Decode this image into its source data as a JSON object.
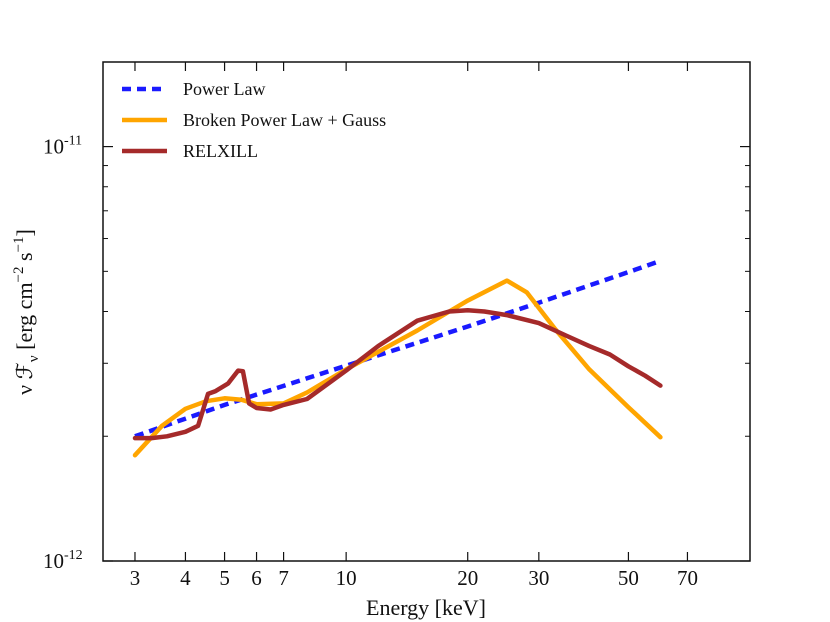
{
  "chart_data": {
    "type": "line",
    "title": "",
    "xlabel": "Energy [keV]",
    "ylabel": "ν ℱν [erg cm⁻² s⁻¹]",
    "xscale": "log",
    "yscale": "log",
    "xlim": [
      2.5,
      100
    ],
    "ylim": [
      1e-12,
      1.6e-11
    ],
    "xticks": [
      {
        "value": 3,
        "label": "3"
      },
      {
        "value": 4,
        "label": "4"
      },
      {
        "value": 5,
        "label": "5"
      },
      {
        "value": 6,
        "label": "6"
      },
      {
        "value": 7,
        "label": "7"
      },
      {
        "value": 10,
        "label": "10"
      },
      {
        "value": 20,
        "label": "20"
      },
      {
        "value": 30,
        "label": "30"
      },
      {
        "value": 50,
        "label": "50"
      },
      {
        "value": 70,
        "label": "70"
      }
    ],
    "yticks": [
      {
        "value": 1e-12,
        "base": "10",
        "exp": "-12"
      },
      {
        "value": 1e-11,
        "base": "10",
        "exp": "-11"
      }
    ],
    "legend_position": "top-left",
    "series": [
      {
        "name": "Power Law",
        "color": "#1a1aff",
        "style": "dashed",
        "x": [
          3,
          5,
          10,
          20,
          30,
          50,
          60
        ],
        "y": [
          2e-12,
          2.38e-12,
          2.96e-12,
          3.68e-12,
          4.2e-12,
          4.98e-12,
          5.3e-12
        ]
      },
      {
        "name": "Broken Power Law + Gauss",
        "color": "#ffa500",
        "style": "solid",
        "x": [
          3,
          3.5,
          4,
          4.5,
          5,
          5.5,
          6,
          7,
          8,
          10,
          15,
          20,
          25,
          28,
          33,
          40,
          50,
          60
        ],
        "y": [
          1.8e-12,
          2.12e-12,
          2.33e-12,
          2.43e-12,
          2.47e-12,
          2.45e-12,
          2.39e-12,
          2.4e-12,
          2.55e-12,
          2.9e-12,
          3.6e-12,
          4.25e-12,
          4.75e-12,
          4.45e-12,
          3.62e-12,
          2.9e-12,
          2.35e-12,
          1.99e-12
        ]
      },
      {
        "name": "RELXILL",
        "color": "#a52a2a",
        "style": "solid",
        "x": [
          3,
          3.3,
          3.6,
          4,
          4.3,
          4.55,
          4.75,
          5.1,
          5.4,
          5.55,
          5.75,
          6,
          6.5,
          7,
          8,
          10,
          12,
          15,
          18,
          20,
          22,
          25,
          30,
          35,
          40,
          45,
          50,
          55,
          60
        ],
        "y": [
          1.98e-12,
          1.98e-12,
          2e-12,
          2.05e-12,
          2.12e-12,
          2.53e-12,
          2.57e-12,
          2.68e-12,
          2.88e-12,
          2.87e-12,
          2.4e-12,
          2.34e-12,
          2.32e-12,
          2.38e-12,
          2.46e-12,
          2.88e-12,
          3.3e-12,
          3.8e-12,
          4e-12,
          4.03e-12,
          4e-12,
          3.92e-12,
          3.75e-12,
          3.5e-12,
          3.3e-12,
          3.15e-12,
          2.95e-12,
          2.8e-12,
          2.65e-12
        ]
      }
    ]
  }
}
